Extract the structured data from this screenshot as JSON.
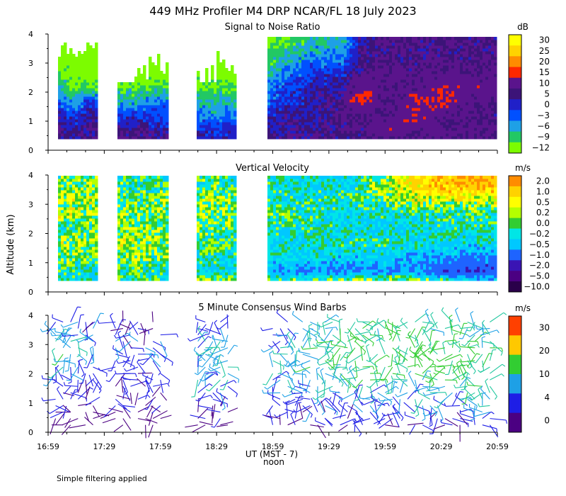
{
  "figure": {
    "title": "449 MHz Profiler M4 DRP NCAR/FL 18 July 2023",
    "ylabel": "Altitude (km)",
    "xlabel": "UT  (MST - 7)",
    "noon_label": "noon",
    "footer": "Simple filtering applied"
  },
  "colors": {
    "snr": [
      "#7cfc00",
      "#22c864",
      "#1ea0e6",
      "#0050ff",
      "#2020c8",
      "#3c1478",
      "#5a148c",
      "#ff2800",
      "#ff8c00",
      "#ffd200",
      "#ffff00",
      "#ffffff"
    ],
    "vel": [
      "#2a004a",
      "#4b0082",
      "#3a14b4",
      "#1e64ff",
      "#00c8ff",
      "#00e6e6",
      "#32cd32",
      "#b4ff00",
      "#ffff00",
      "#ffd200",
      "#ff8c00",
      "#ff5000",
      "#e60000"
    ],
    "barb": [
      "#4b0082",
      "#1e1ee6",
      "#1ea0e6",
      "#22c8a0",
      "#32cd32",
      "#ffc800",
      "#ff4000"
    ]
  },
  "chart_data": [
    {
      "type": "heatmap",
      "title": "Signal to Noise Ratio",
      "units": "dB",
      "x": {
        "range": [
          "16:59",
          "20:59"
        ],
        "tick_labels": [
          "16:59",
          "17:29",
          "17:59",
          "18:29",
          "18:59",
          "19:29",
          "19:59",
          "20:29",
          "20:59"
        ]
      },
      "y": {
        "range": [
          0,
          4
        ],
        "tick_labels": [
          "0",
          "1",
          "2",
          "3",
          "4"
        ]
      },
      "colorbar": [
        "30",
        "25",
        "20",
        "15",
        "10",
        "5",
        "0",
        "−3",
        "−6",
        "−9",
        "−12"
      ],
      "profiles": [
        {
          "t": "17:05",
          "snr": [
            5,
            4,
            3,
            -3,
            -6,
            -9,
            -12,
            -12
          ]
        },
        {
          "t": "17:12",
          "snr": [
            3,
            2,
            0,
            -6,
            -9,
            -12,
            -12,
            -12
          ]
        },
        {
          "t": "17:20",
          "snr": [
            4,
            5,
            3,
            0,
            -9,
            -12,
            -12,
            -12
          ]
        },
        {
          "t": "17:35",
          "snr": [
            5,
            4,
            0,
            -6,
            -9,
            -12,
            -12,
            -12
          ]
        },
        {
          "t": "17:45",
          "snr": [
            8,
            5,
            0,
            -6,
            -9,
            -12,
            -12,
            -12
          ]
        },
        {
          "t": "17:55",
          "snr": [
            4,
            3,
            0,
            -3,
            -9,
            -12,
            -12,
            -12
          ]
        },
        {
          "t": "18:25",
          "snr": [
            2,
            1,
            -3,
            -6,
            -9,
            -12,
            -12,
            -12
          ]
        },
        {
          "t": "18:40",
          "snr": [
            3,
            2,
            -3,
            -6,
            -9,
            -12,
            -12,
            -12
          ]
        },
        {
          "t": "19:05",
          "snr": [
            4,
            4,
            3,
            1,
            0,
            -3,
            -6,
            -9
          ]
        },
        {
          "t": "19:20",
          "snr": [
            5,
            4,
            3,
            3,
            2,
            0,
            -3,
            -6
          ]
        },
        {
          "t": "19:35",
          "snr": [
            5,
            5,
            5,
            5,
            3,
            1,
            -3,
            -6
          ]
        },
        {
          "t": "19:45",
          "snr": [
            5,
            5,
            6,
            11,
            9,
            5,
            4,
            3
          ]
        },
        {
          "t": "20:00",
          "snr": [
            5,
            9,
            6,
            5,
            6,
            7,
            5,
            5
          ]
        },
        {
          "t": "20:15",
          "snr": [
            5,
            6,
            10,
            10,
            6,
            5,
            5,
            5
          ]
        },
        {
          "t": "20:30",
          "snr": [
            5,
            6,
            6,
            10,
            10,
            6,
            5,
            5
          ]
        },
        {
          "t": "20:45",
          "snr": [
            5,
            6,
            5,
            6,
            8,
            6,
            5,
            5
          ]
        }
      ]
    },
    {
      "type": "heatmap",
      "title": "Vertical Velocity",
      "units": "m/s",
      "x": {
        "range": [
          "16:59",
          "20:59"
        ],
        "tick_labels": [
          "16:59",
          "17:29",
          "17:59",
          "18:29",
          "18:59",
          "19:29",
          "19:59",
          "20:29",
          "20:59"
        ]
      },
      "y": {
        "range": [
          0,
          4
        ],
        "tick_labels": [
          "0",
          "1",
          "2",
          "3",
          "4"
        ]
      },
      "colorbar": [
        "2.0",
        "1.0",
        "0.5",
        "0.2",
        "0.0",
        "−0.2",
        "−0.5",
        "−1.0",
        "−2.0",
        "−5.0",
        "−10.0"
      ],
      "profiles": [
        {
          "t": "17:05",
          "w": [
            -0.5,
            -0.3,
            0.0,
            0.1,
            -0.2,
            0.2,
            0.0,
            -0.1
          ]
        },
        {
          "t": "17:20",
          "w": [
            -0.5,
            -0.4,
            -0.2,
            0.1,
            -0.2,
            0.1,
            0.2,
            0.0
          ]
        },
        {
          "t": "17:45",
          "w": [
            -0.3,
            -0.2,
            0.0,
            0.2,
            0.0,
            -0.1,
            -0.2,
            -0.3
          ]
        },
        {
          "t": "18:25",
          "w": [
            0.5,
            -0.5,
            -0.3,
            -0.2,
            -0.1,
            0.0,
            0.1,
            -0.2
          ]
        },
        {
          "t": "19:10",
          "w": [
            0.5,
            -1.0,
            -0.6,
            -0.5,
            -0.3,
            -0.2,
            -0.4,
            -0.5
          ]
        },
        {
          "t": "19:40",
          "w": [
            1.0,
            -1.2,
            -0.6,
            -0.3,
            -0.5,
            -0.5,
            -0.3,
            -0.4
          ]
        },
        {
          "t": "20:10",
          "w": [
            1.0,
            -1.0,
            -0.8,
            -0.4,
            -0.5,
            -0.3,
            0.2,
            0.5
          ]
        },
        {
          "t": "20:40",
          "w": [
            0.5,
            -2.0,
            -1.0,
            -0.5,
            -0.4,
            -0.2,
            0.3,
            1.0
          ]
        }
      ]
    },
    {
      "type": "scatter",
      "title": "5 Minute Consensus Wind Barbs",
      "units": "m/s",
      "x": {
        "range": [
          "16:59",
          "20:59"
        ],
        "tick_labels": [
          "16:59",
          "17:29",
          "17:59",
          "18:29",
          "18:59",
          "19:29",
          "19:59",
          "20:29",
          "20:59"
        ]
      },
      "y": {
        "range": [
          0,
          4
        ],
        "tick_labels": [
          "0",
          "1",
          "2",
          "3",
          "4"
        ]
      },
      "colorbar": [
        "30",
        "20",
        "10",
        "4",
        "0"
      ],
      "profiles": [
        {
          "t": "17:10",
          "speed": [
            3,
            4,
            5,
            6,
            8,
            10,
            8,
            6
          ]
        },
        {
          "t": "17:40",
          "speed": [
            2,
            3,
            4,
            4,
            5,
            6,
            5,
            4
          ]
        },
        {
          "t": "18:30",
          "speed": [
            3,
            4,
            6,
            8,
            10,
            9,
            7,
            6
          ]
        },
        {
          "t": "19:10",
          "speed": [
            4,
            5,
            6,
            8,
            9,
            8,
            7,
            6
          ]
        },
        {
          "t": "19:40",
          "speed": [
            5,
            6,
            8,
            10,
            11,
            12,
            12,
            11
          ]
        },
        {
          "t": "20:10",
          "speed": [
            4,
            6,
            8,
            10,
            12,
            12,
            11,
            10
          ]
        },
        {
          "t": "20:45",
          "speed": [
            5,
            7,
            9,
            10,
            12,
            11,
            10,
            9
          ]
        }
      ]
    }
  ]
}
